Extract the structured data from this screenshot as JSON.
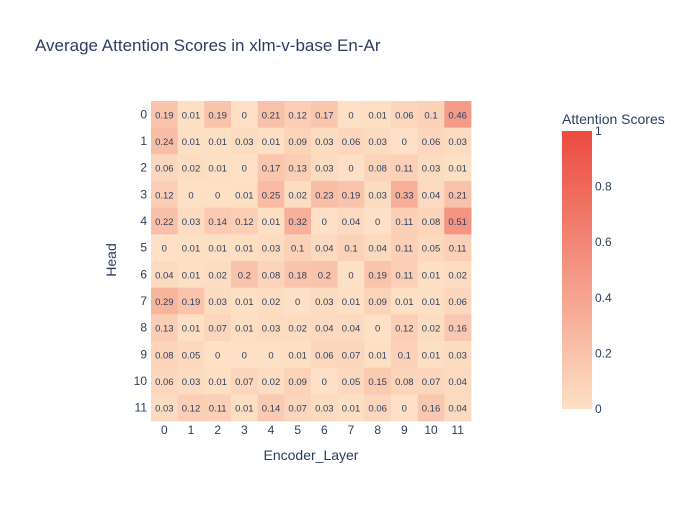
{
  "chart_data": {
    "type": "heatmap",
    "title": "Average Attention Scores in xlm-v-base En-Ar",
    "xlabel": "Encoder_Layer",
    "ylabel": "Head",
    "x_categories": [
      "0",
      "1",
      "2",
      "3",
      "4",
      "5",
      "6",
      "7",
      "8",
      "9",
      "10",
      "11"
    ],
    "y_categories": [
      "0",
      "1",
      "2",
      "3",
      "4",
      "5",
      "6",
      "7",
      "8",
      "9",
      "10",
      "11"
    ],
    "values": [
      [
        0.19,
        0.01,
        0.19,
        0,
        0.21,
        0.12,
        0.17,
        0,
        0.01,
        0.06,
        0.1,
        0.46
      ],
      [
        0.24,
        0.01,
        0.01,
        0.03,
        0.01,
        0.09,
        0.03,
        0.06,
        0.03,
        0,
        0.06,
        0.03
      ],
      [
        0.06,
        0.02,
        0.01,
        0,
        0.17,
        0.13,
        0.03,
        0,
        0.08,
        0.11,
        0.03,
        0.01
      ],
      [
        0.12,
        0,
        0,
        0.01,
        0.25,
        0.02,
        0.23,
        0.19,
        0.03,
        0.33,
        0.04,
        0.21
      ],
      [
        0.22,
        0.03,
        0.14,
        0.12,
        0.01,
        0.32,
        0,
        0.04,
        0,
        0.11,
        0.08,
        0.51
      ],
      [
        0,
        0.01,
        0.01,
        0.01,
        0.03,
        0.1,
        0.04,
        0.1,
        0.04,
        0.11,
        0.05,
        0.11
      ],
      [
        0.04,
        0.01,
        0.02,
        0.2,
        0.08,
        0.18,
        0.2,
        0,
        0.19,
        0.11,
        0.01,
        0.02
      ],
      [
        0.29,
        0.19,
        0.03,
        0.01,
        0.02,
        0,
        0.03,
        0.01,
        0.09,
        0.01,
        0.01,
        0.06
      ],
      [
        0.13,
        0.01,
        0.07,
        0.01,
        0.03,
        0.02,
        0.04,
        0.04,
        0,
        0.12,
        0.02,
        0.16
      ],
      [
        0.08,
        0.05,
        0,
        0,
        0,
        0.01,
        0.06,
        0.07,
        0.01,
        0.1,
        0.01,
        0.03
      ],
      [
        0.06,
        0.03,
        0.01,
        0.07,
        0.02,
        0.09,
        0,
        0.05,
        0.15,
        0.08,
        0.07,
        0.04
      ],
      [
        0.03,
        0.12,
        0.11,
        0.01,
        0.14,
        0.07,
        0.03,
        0.01,
        0.06,
        0,
        0.16,
        0.04
      ]
    ],
    "colorbar": {
      "title": "Attention Scores",
      "range": [
        0,
        1
      ],
      "ticks": [
        0,
        0.2,
        0.4,
        0.6,
        0.8,
        1
      ],
      "colors": [
        "#fde0c5",
        "#eb4a40"
      ]
    },
    "data_labels_shown": true
  }
}
